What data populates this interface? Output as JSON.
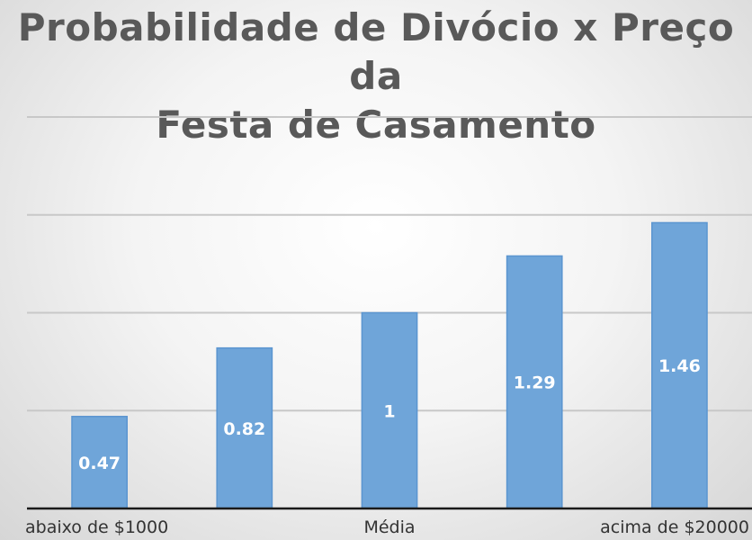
{
  "chart_data": {
    "type": "bar",
    "title_lines": [
      "Probabilidade de Divócio x Preço da",
      "Festa de Casamento"
    ],
    "categories": [
      "abaixo de $1000",
      "",
      "Média",
      "",
      "acima de $20000"
    ],
    "values": [
      0.47,
      0.82,
      1,
      1.29,
      1.46
    ],
    "data_labels": [
      "0.47",
      "0.82",
      "1",
      "1.29",
      "1.46"
    ],
    "ylim": [
      0,
      2
    ],
    "grid": true,
    "bar_color": "#6fa5d9",
    "bar_edge_color": "#5b95d0"
  }
}
